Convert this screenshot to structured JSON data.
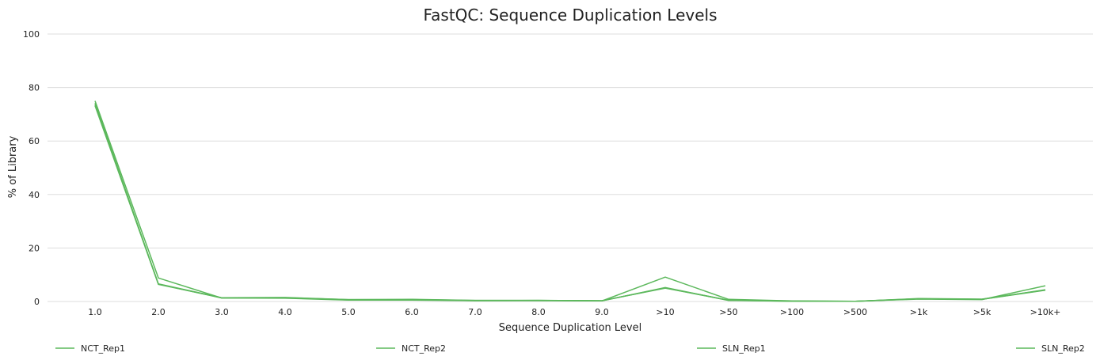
{
  "chart_data": {
    "type": "line",
    "title": "FastQC: Sequence Duplication Levels",
    "xlabel": "Sequence Duplication Level",
    "ylabel": "% of Library",
    "ylim": [
      0,
      100
    ],
    "yticks": [
      0,
      20,
      40,
      60,
      80,
      100
    ],
    "grid": true,
    "legend_position": "bottom",
    "categories": [
      "1.0",
      "2.0",
      "3.0",
      "4.0",
      "5.0",
      "6.0",
      "7.0",
      "8.0",
      "9.0",
      ">10",
      ">50",
      ">100",
      ">500",
      ">1k",
      ">5k",
      ">10k+"
    ],
    "series": [
      {
        "name": "NCT_Rep1",
        "color": "#5cb85c",
        "values": [
          75.0,
          8.8,
          1.3,
          1.2,
          0.5,
          0.5,
          0.3,
          0.3,
          0.2,
          9.1,
          0.8,
          0.2,
          0.1,
          0.9,
          0.7,
          5.9
        ]
      },
      {
        "name": "NCT_Rep2",
        "color": "#5cb85c",
        "values": [
          74.2,
          6.6,
          1.4,
          1.5,
          0.7,
          0.8,
          0.4,
          0.4,
          0.3,
          5.1,
          0.4,
          0.1,
          0.1,
          1.1,
          0.9,
          4.3
        ]
      },
      {
        "name": "SLN_Rep1",
        "color": "#5cb85c",
        "values": [
          73.6,
          6.4,
          1.4,
          1.4,
          0.6,
          0.7,
          0.4,
          0.4,
          0.3,
          5.0,
          0.5,
          0.1,
          0.1,
          1.0,
          0.8,
          4.4
        ]
      },
      {
        "name": "SLN_Rep2",
        "color": "#5cb85c",
        "values": [
          73.2,
          6.5,
          1.3,
          1.4,
          0.7,
          0.7,
          0.3,
          0.4,
          0.2,
          5.2,
          0.4,
          0.2,
          0.1,
          1.0,
          0.8,
          4.2
        ]
      }
    ]
  }
}
